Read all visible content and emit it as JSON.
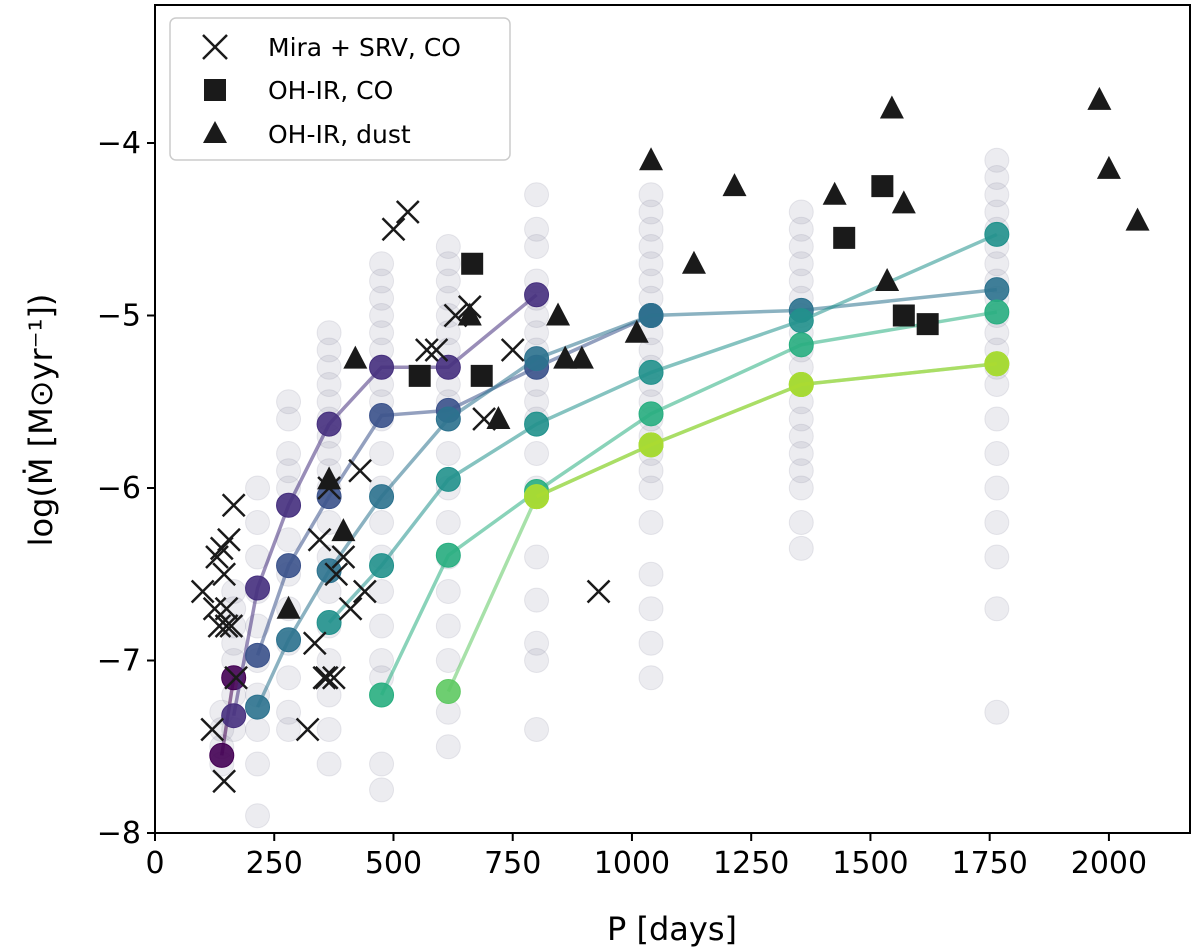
{
  "chart_data": {
    "type": "scatter",
    "xlabel": "P [days]",
    "ylabel": "log(Ṁ [M⊙yr⁻¹])",
    "xlim": [
      0,
      2170
    ],
    "ylim": [
      -8,
      -3.2
    ],
    "xticks": [
      0,
      250,
      500,
      750,
      1000,
      1250,
      1500,
      1750,
      2000
    ],
    "yticks": [
      -8,
      -7,
      -6,
      -5,
      -4
    ],
    "grid": false,
    "legend_position": "top-left",
    "legend": [
      {
        "label": "Mira + SRV, CO",
        "marker": "x"
      },
      {
        "label": "OH-IR, CO",
        "marker": "square"
      },
      {
        "label": "OH-IR, dust",
        "marker": "triangle"
      }
    ],
    "series": [
      {
        "marker": "x",
        "color": "#1a1a1a",
        "points": [
          [
            100,
            -6.6
          ],
          [
            120,
            -7.4
          ],
          [
            125,
            -6.7
          ],
          [
            130,
            -6.4
          ],
          [
            135,
            -6.8
          ],
          [
            140,
            -6.35
          ],
          [
            145,
            -6.5
          ],
          [
            145,
            -7.7
          ],
          [
            150,
            -6.7
          ],
          [
            150,
            -6.8
          ],
          [
            155,
            -6.3
          ],
          [
            160,
            -6.8
          ],
          [
            165,
            -6.1
          ],
          [
            170,
            -7.1
          ],
          [
            320,
            -7.4
          ],
          [
            335,
            -6.9
          ],
          [
            345,
            -6.3
          ],
          [
            355,
            -7.1
          ],
          [
            360,
            -7.1
          ],
          [
            365,
            -6.0
          ],
          [
            375,
            -7.1
          ],
          [
            380,
            -6.5
          ],
          [
            395,
            -6.4
          ],
          [
            410,
            -6.7
          ],
          [
            430,
            -5.9
          ],
          [
            440,
            -6.6
          ],
          [
            500,
            -4.5
          ],
          [
            530,
            -4.4
          ],
          [
            570,
            -5.2
          ],
          [
            590,
            -5.2
          ],
          [
            630,
            -5.0
          ],
          [
            660,
            -4.95
          ],
          [
            690,
            -5.6
          ],
          [
            750,
            -5.2
          ],
          [
            930,
            -6.6
          ]
        ]
      },
      {
        "marker": "square",
        "color": "#1a1a1a",
        "points": [
          [
            555,
            -5.35
          ],
          [
            665,
            -4.7
          ],
          [
            685,
            -5.35
          ],
          [
            1445,
            -4.55
          ],
          [
            1525,
            -4.25
          ],
          [
            1570,
            -5.0
          ],
          [
            1620,
            -5.05
          ]
        ]
      },
      {
        "marker": "triangle",
        "color": "#1a1a1a",
        "points": [
          [
            280,
            -6.7
          ],
          [
            365,
            -5.95
          ],
          [
            395,
            -6.25
          ],
          [
            420,
            -5.25
          ],
          [
            660,
            -5.0
          ],
          [
            720,
            -5.6
          ],
          [
            845,
            -5.0
          ],
          [
            860,
            -5.25
          ],
          [
            895,
            -5.25
          ],
          [
            1010,
            -5.1
          ],
          [
            1040,
            -4.1
          ],
          [
            1130,
            -4.7
          ],
          [
            1215,
            -4.25
          ],
          [
            1425,
            -4.3
          ],
          [
            1535,
            -4.8
          ],
          [
            1545,
            -3.8
          ],
          [
            1570,
            -4.35
          ],
          [
            1980,
            -3.75
          ],
          [
            2000,
            -4.15
          ],
          [
            2060,
            -4.45
          ]
        ]
      }
    ],
    "model_periods": [
      140,
      165,
      215,
      280,
      365,
      475,
      615,
      800,
      1040,
      1355,
      1765
    ],
    "model_cloud": [
      {
        "x": 140,
        "ymin": -7.7,
        "ymax": -7.2,
        "values": [
          -7.6,
          -7.5,
          -7.4,
          -7.3
        ]
      },
      {
        "x": 165,
        "ymin": -7.6,
        "ymax": -6.5,
        "values": [
          -7.4,
          -7.2,
          -7.0,
          -6.9,
          -6.8,
          -6.7,
          -6.6
        ]
      },
      {
        "x": 215,
        "ymin": -7.9,
        "ymax": -6.0,
        "values": [
          -7.9,
          -7.6,
          -7.4,
          -7.2,
          -7.0,
          -6.8,
          -6.6,
          -6.4,
          -6.2,
          -6.0
        ]
      },
      {
        "x": 280,
        "ymin": -7.4,
        "ymax": -5.5,
        "values": [
          -7.4,
          -7.3,
          -7.1,
          -6.9,
          -6.7,
          -6.5,
          -6.3,
          -6.1,
          -6.0,
          -5.9,
          -5.8,
          -5.6,
          -5.5
        ]
      },
      {
        "x": 365,
        "ymin": -7.6,
        "ymax": -5.1,
        "values": [
          -7.6,
          -7.4,
          -7.2,
          -7.0,
          -6.8,
          -6.6,
          -6.4,
          -6.2,
          -6.0,
          -5.9,
          -5.8,
          -5.7,
          -5.6,
          -5.5,
          -5.4,
          -5.3,
          -5.2,
          -5.1
        ]
      },
      {
        "x": 475,
        "ymin": -7.8,
        "ymax": -4.7,
        "values": [
          -7.75,
          -7.6,
          -7.1,
          -7.0,
          -6.8,
          -6.6,
          -6.4,
          -6.2,
          -6.0,
          -5.8,
          -5.6,
          -5.5,
          -5.4,
          -5.3,
          -5.2,
          -5.1,
          -5.0,
          -4.9,
          -4.8,
          -4.7
        ]
      },
      {
        "x": 615,
        "ymin": -7.5,
        "ymax": -4.6,
        "values": [
          -7.5,
          -7.3,
          -7.0,
          -6.8,
          -6.6,
          -6.4,
          -6.2,
          -6.0,
          -5.8,
          -5.6,
          -5.5,
          -5.4,
          -5.3,
          -5.2,
          -5.1,
          -5.0,
          -4.9,
          -4.8,
          -4.7,
          -4.6
        ]
      },
      {
        "x": 800,
        "ymin": -7.4,
        "ymax": -4.3,
        "values": [
          -7.4,
          -7.0,
          -6.9,
          -6.65,
          -6.4,
          -6.0,
          -5.8,
          -5.6,
          -5.5,
          -5.4,
          -5.3,
          -5.2,
          -5.1,
          -5.0,
          -4.9,
          -4.8,
          -4.6,
          -4.5,
          -4.3
        ]
      },
      {
        "x": 1040,
        "ymin": -7.1,
        "ymax": -4.3,
        "values": [
          -7.1,
          -6.9,
          -6.7,
          -6.5,
          -6.2,
          -6.0,
          -5.9,
          -5.8,
          -5.7,
          -5.6,
          -5.5,
          -5.4,
          -5.3,
          -5.2,
          -5.1,
          -5.0,
          -4.9,
          -4.8,
          -4.7,
          -4.6,
          -4.5,
          -4.4,
          -4.3
        ]
      },
      {
        "x": 1355,
        "ymin": -6.4,
        "ymax": -4.4,
        "values": [
          -6.35,
          -6.2,
          -6.0,
          -5.9,
          -5.8,
          -5.7,
          -5.6,
          -5.5,
          -5.4,
          -5.3,
          -5.2,
          -5.1,
          -5.0,
          -4.9,
          -4.8,
          -4.7,
          -4.6,
          -4.5,
          -4.4
        ]
      },
      {
        "x": 1765,
        "ymin": -7.3,
        "ymax": -4.1,
        "values": [
          -7.3,
          -6.7,
          -6.4,
          -6.2,
          -6.0,
          -5.8,
          -5.6,
          -5.4,
          -5.3,
          -5.2,
          -5.1,
          -5.0,
          -4.9,
          -4.8,
          -4.7,
          -4.6,
          -4.5,
          -4.4,
          -4.3,
          -4.2,
          -4.1
        ]
      }
    ],
    "model_tracks": [
      {
        "color": "#440154",
        "points": [
          [
            140,
            -7.55
          ],
          [
            165,
            -7.1
          ]
        ]
      },
      {
        "color": "#46307e",
        "points": [
          [
            165,
            -7.32
          ],
          [
            215,
            -6.58
          ],
          [
            280,
            -6.1
          ],
          [
            365,
            -5.63
          ],
          [
            475,
            -5.3
          ],
          [
            615,
            -5.3
          ],
          [
            800,
            -4.88
          ]
        ]
      },
      {
        "color": "#3b528b",
        "points": [
          [
            215,
            -6.97
          ],
          [
            280,
            -6.45
          ],
          [
            365,
            -6.05
          ],
          [
            475,
            -5.58
          ],
          [
            615,
            -5.55
          ],
          [
            800,
            -5.3
          ],
          [
            1040,
            -5.0
          ]
        ]
      },
      {
        "color": "#2c728e",
        "points": [
          [
            215,
            -7.27
          ],
          [
            280,
            -6.88
          ],
          [
            365,
            -6.48
          ],
          [
            475,
            -6.05
          ],
          [
            615,
            -5.6
          ],
          [
            800,
            -5.25
          ],
          [
            1040,
            -5.0
          ],
          [
            1355,
            -4.97
          ],
          [
            1765,
            -4.85
          ]
        ]
      },
      {
        "color": "#21918c",
        "points": [
          [
            365,
            -6.78
          ],
          [
            475,
            -6.45
          ],
          [
            615,
            -5.95
          ],
          [
            800,
            -5.63
          ],
          [
            1040,
            -5.33
          ],
          [
            1355,
            -5.03
          ],
          [
            1765,
            -4.53
          ]
        ]
      },
      {
        "color": "#28ae80",
        "points": [
          [
            475,
            -7.2
          ],
          [
            615,
            -6.39
          ],
          [
            800,
            -6.02
          ],
          [
            1040,
            -5.57
          ],
          [
            1355,
            -5.17
          ],
          [
            1765,
            -4.98
          ]
        ]
      },
      {
        "color": "#5ec962",
        "points": [
          [
            615,
            -7.18
          ],
          [
            800,
            -6.05
          ],
          [
            1040,
            -5.75
          ],
          [
            1355,
            -5.4
          ],
          [
            1765,
            -5.28
          ]
        ]
      },
      {
        "color": "#addc30",
        "points": [
          [
            800,
            -6.05
          ],
          [
            1040,
            -5.75
          ],
          [
            1355,
            -5.4
          ],
          [
            1765,
            -5.28
          ]
        ]
      }
    ]
  }
}
